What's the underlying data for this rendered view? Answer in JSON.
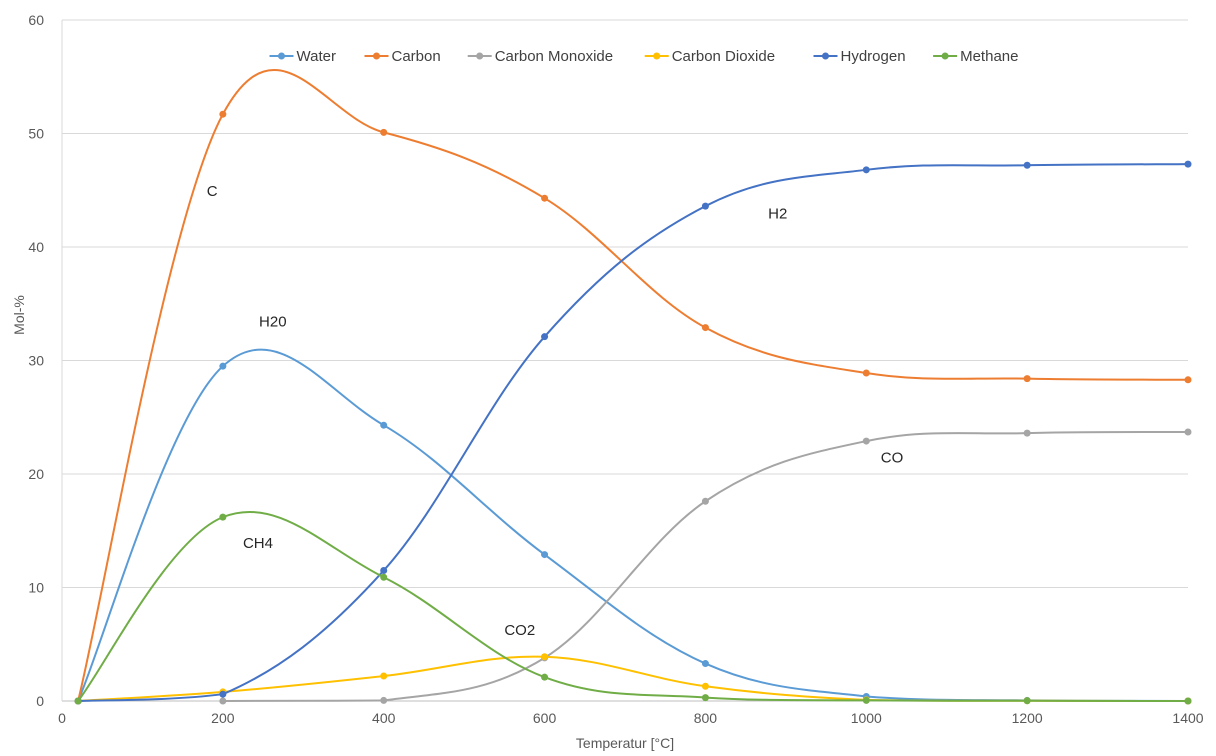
{
  "chart_data": {
    "type": "line",
    "title": "",
    "xlabel": "Temperatur [°C]",
    "ylabel": "Mol-%",
    "xlim": [
      0,
      1400
    ],
    "ylim": [
      0,
      60
    ],
    "x_ticks": [
      "0",
      "200",
      "400",
      "600",
      "800",
      "1000",
      "1200",
      "1400"
    ],
    "y_ticks": [
      "0",
      "10",
      "20",
      "30",
      "40",
      "50",
      "60"
    ],
    "grid": "horizontal",
    "legend_position": "top",
    "smoothed": true,
    "series": [
      {
        "name": "Water",
        "color": "#5b9bd5",
        "points": [
          [
            20,
            0
          ],
          [
            200,
            29.5
          ],
          [
            400,
            24.3
          ],
          [
            600,
            12.9
          ],
          [
            800,
            3.3
          ],
          [
            1000,
            0.4
          ],
          [
            1200,
            0.05
          ],
          [
            1400,
            0
          ]
        ]
      },
      {
        "name": "Carbon",
        "color": "#ed7d31",
        "points": [
          [
            20,
            0
          ],
          [
            200,
            51.7
          ],
          [
            400,
            50.1
          ],
          [
            600,
            44.3
          ],
          [
            800,
            32.9
          ],
          [
            1000,
            28.9
          ],
          [
            1200,
            28.4
          ],
          [
            1400,
            28.3
          ]
        ]
      },
      {
        "name": "Carbon Monoxide",
        "color": "#a5a5a5",
        "points": [
          [
            200,
            0
          ],
          [
            400,
            0.05
          ],
          [
            600,
            3.8
          ],
          [
            800,
            17.6
          ],
          [
            1000,
            22.9
          ],
          [
            1200,
            23.6
          ],
          [
            1400,
            23.7
          ]
        ]
      },
      {
        "name": "Carbon Dioxide",
        "color": "#ffc000",
        "points": [
          [
            20,
            0
          ],
          [
            200,
            0.8
          ],
          [
            400,
            2.2
          ],
          [
            600,
            3.9
          ],
          [
            800,
            1.3
          ],
          [
            1000,
            0.1
          ],
          [
            1200,
            0.02
          ],
          [
            1400,
            0
          ]
        ]
      },
      {
        "name": "Hydrogen",
        "color": "#4472c4",
        "points": [
          [
            20,
            0
          ],
          [
            200,
            0.6
          ],
          [
            400,
            11.5
          ],
          [
            600,
            32.1
          ],
          [
            800,
            43.6
          ],
          [
            1000,
            46.8
          ],
          [
            1200,
            47.2
          ],
          [
            1400,
            47.3
          ]
        ]
      },
      {
        "name": "Methane",
        "color": "#70ad47",
        "points": [
          [
            20,
            0
          ],
          [
            200,
            16.2
          ],
          [
            400,
            10.9
          ],
          [
            600,
            2.1
          ],
          [
            800,
            0.3
          ],
          [
            1000,
            0.05
          ],
          [
            1200,
            0.02
          ],
          [
            1400,
            0
          ]
        ]
      }
    ],
    "annotations": [
      {
        "text": "C",
        "x": 180,
        "y": 44.5
      },
      {
        "text": "H20",
        "x": 245,
        "y": 33
      },
      {
        "text": "CH4",
        "x": 225,
        "y": 13.5
      },
      {
        "text": "H2",
        "x": 878,
        "y": 42.5
      },
      {
        "text": "CO",
        "x": 1018,
        "y": 21
      },
      {
        "text": "CO2",
        "x": 550,
        "y": 5.8
      }
    ]
  }
}
